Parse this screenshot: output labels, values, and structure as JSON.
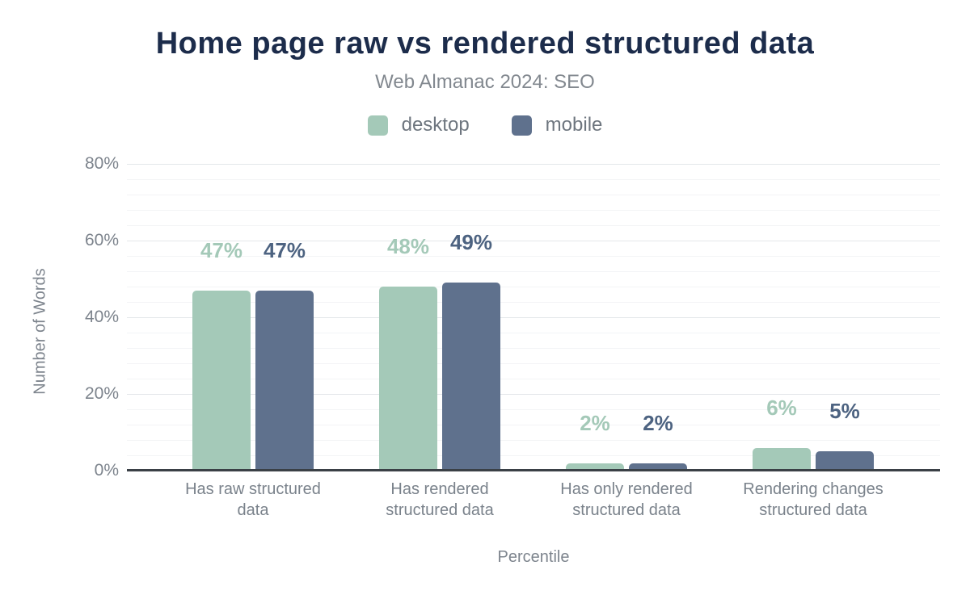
{
  "title": "Home page raw vs rendered structured data",
  "subtitle": "Web Almanac 2024: SEO",
  "legend": [
    {
      "label": "desktop",
      "color": "#a4c9b8"
    },
    {
      "label": "mobile",
      "color": "#5f718d"
    }
  ],
  "colors": {
    "title": "#1c2c4b",
    "subtitle_text": "#82888f",
    "axis_text": "#7d848d",
    "axis_line": "#3a4046",
    "gridline_major": "#e4e7ea",
    "gridline_minor": "#f3f4f6",
    "desktop_bar": "#a4c9b8",
    "desktop_value_label": "#a4c9b8",
    "mobile_bar": "#5f718d",
    "mobile_value_label": "#4d6381"
  },
  "chart_data": {
    "type": "bar",
    "title": "Home page raw vs rendered structured data",
    "subtitle": "Web Almanac 2024: SEO",
    "xlabel": "Percentile",
    "ylabel": "Number of Words",
    "ylim": [
      0,
      80
    ],
    "yticks": [
      0,
      20,
      40,
      60,
      80
    ],
    "ytick_labels": [
      "0%",
      "20%",
      "40%",
      "60%",
      "80%"
    ],
    "grid": "horizontal major every 20%, faint minor every 4%",
    "legend_position": "top-center",
    "categories": [
      "Has raw structured data",
      "Has rendered structured data",
      "Has only rendered structured data",
      "Rendering changes structured data"
    ],
    "categories_lines": [
      [
        "Has raw structured",
        "data"
      ],
      [
        "Has rendered",
        "structured data"
      ],
      [
        "Has only rendered",
        "structured data"
      ],
      [
        "Rendering changes",
        "structured data"
      ]
    ],
    "series": [
      {
        "name": "desktop",
        "values": [
          47,
          48,
          2,
          6
        ],
        "labels": [
          "47%",
          "48%",
          "2%",
          "6%"
        ]
      },
      {
        "name": "mobile",
        "values": [
          47,
          49,
          2,
          5
        ],
        "labels": [
          "47%",
          "49%",
          "2%",
          "5%"
        ]
      }
    ]
  }
}
